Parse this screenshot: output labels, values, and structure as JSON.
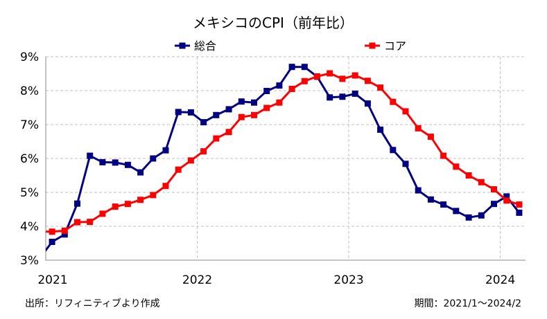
{
  "chart_data": {
    "type": "line",
    "title": "メキシコのCPI（前年比）",
    "xlabel": "",
    "ylabel": "",
    "x_tick_labels": [
      "2021",
      "2022",
      "2023",
      "2024"
    ],
    "y_tick_labels": [
      "3%",
      "4%",
      "5%",
      "6%",
      "7%",
      "8%",
      "9%"
    ],
    "ylim": [
      3,
      9
    ],
    "grid": true,
    "legend_position": "top",
    "x": [
      "2021/01",
      "2021/02",
      "2021/03",
      "2021/04",
      "2021/05",
      "2021/06",
      "2021/07",
      "2021/08",
      "2021/09",
      "2021/10",
      "2021/11",
      "2021/12",
      "2022/01",
      "2022/02",
      "2022/03",
      "2022/04",
      "2022/05",
      "2022/06",
      "2022/07",
      "2022/08",
      "2022/09",
      "2022/10",
      "2022/11",
      "2022/12",
      "2023/01",
      "2023/02",
      "2023/03",
      "2023/04",
      "2023/05",
      "2023/06",
      "2023/07",
      "2023/08",
      "2023/09",
      "2023/10",
      "2023/11",
      "2023/12",
      "2024/01",
      "2024/02"
    ],
    "series": [
      {
        "name": "総合",
        "color": "#000080",
        "marker": "square",
        "values": [
          3.54,
          3.76,
          4.67,
          6.08,
          5.89,
          5.88,
          5.81,
          5.59,
          6.0,
          6.24,
          7.37,
          7.36,
          7.07,
          7.28,
          7.45,
          7.68,
          7.65,
          7.99,
          8.15,
          8.7,
          8.7,
          8.41,
          7.8,
          7.82,
          7.91,
          7.62,
          6.85,
          6.25,
          5.84,
          5.06,
          4.79,
          4.64,
          4.45,
          4.26,
          4.32,
          4.66,
          4.88,
          4.4
        ]
      },
      {
        "name": "コア",
        "color": "#ff0000",
        "marker": "square",
        "values": [
          3.84,
          3.87,
          4.12,
          4.13,
          4.37,
          4.58,
          4.66,
          4.78,
          4.92,
          5.19,
          5.67,
          5.94,
          6.21,
          6.59,
          6.78,
          7.22,
          7.28,
          7.49,
          7.65,
          8.05,
          8.28,
          8.42,
          8.51,
          8.35,
          8.45,
          8.29,
          8.09,
          7.67,
          7.39,
          6.89,
          6.64,
          6.08,
          5.76,
          5.5,
          5.3,
          5.09,
          4.76,
          4.64
        ]
      }
    ]
  },
  "footer": {
    "source": "出所：リフィニティブより作成",
    "period": "期間：2021/1～2024/2"
  }
}
